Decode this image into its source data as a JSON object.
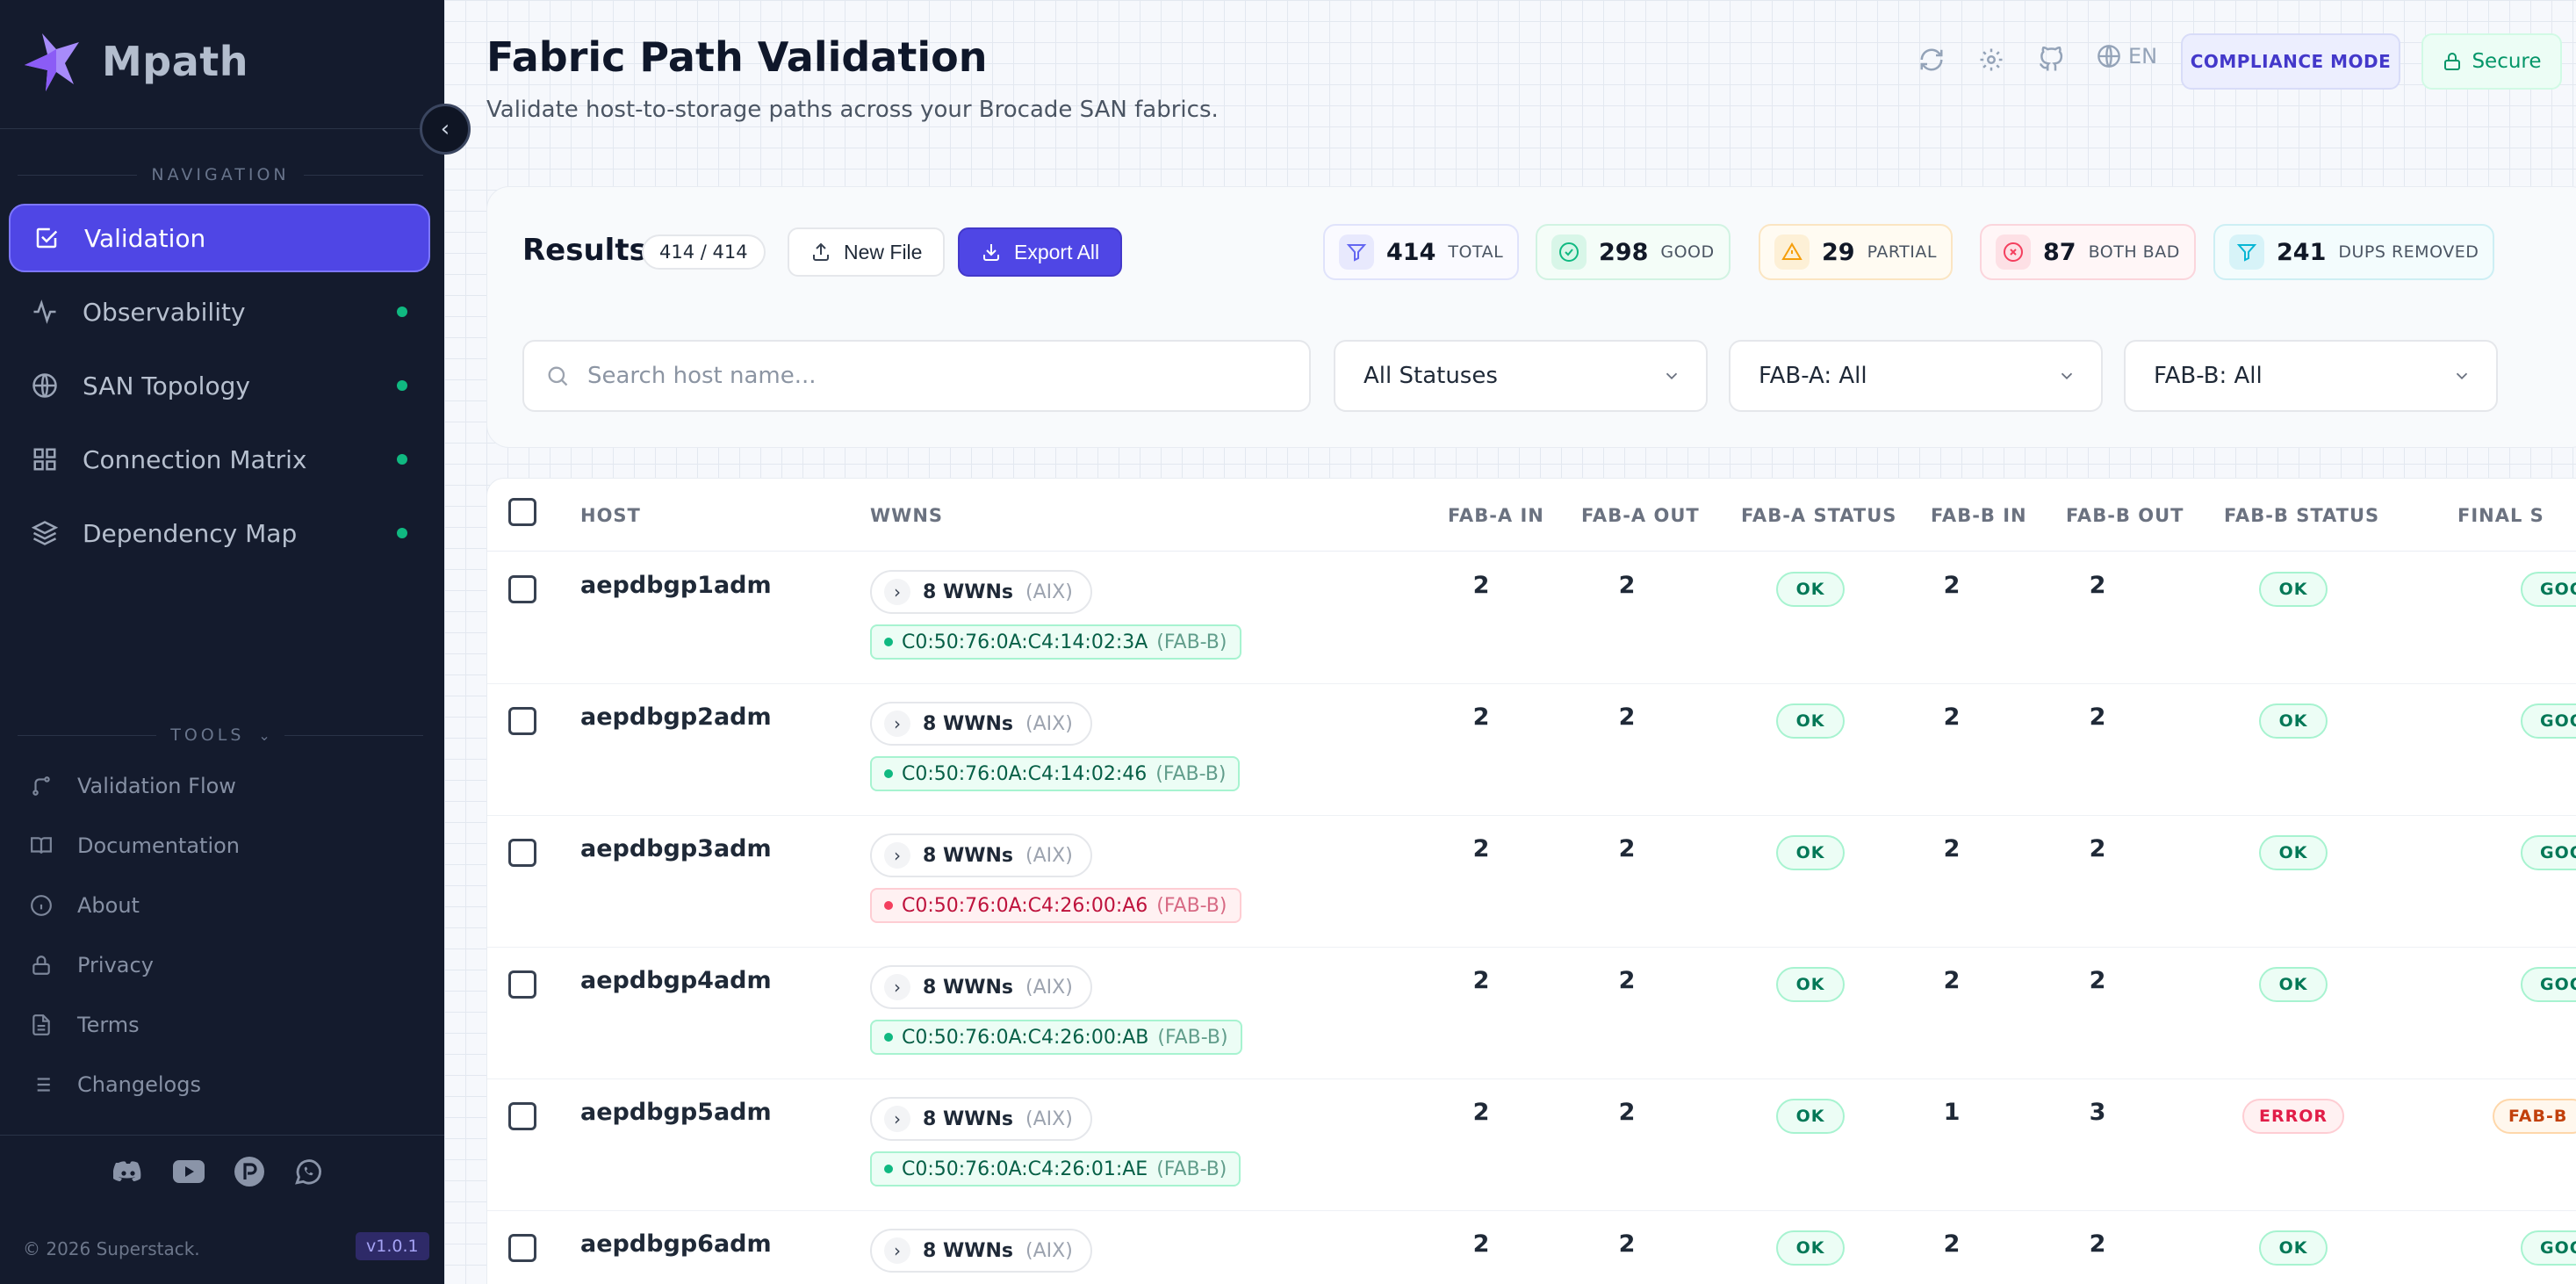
{
  "app": {
    "name": "Mpath",
    "version": "v1.0.1",
    "copyright": "© 2026 Superstack."
  },
  "sidebar": {
    "nav_label": "NAVIGATION",
    "tools_label": "TOOLS",
    "nav": [
      {
        "label": "Validation",
        "icon": "checkbox-icon",
        "active": true
      },
      {
        "label": "Observability",
        "icon": "pulse-icon"
      },
      {
        "label": "SAN Topology",
        "icon": "globe-icon"
      },
      {
        "label": "Connection Matrix",
        "icon": "grid-icon"
      },
      {
        "label": "Dependency Map",
        "icon": "layers-icon"
      }
    ],
    "tools": [
      {
        "label": "Validation Flow",
        "icon": "flow-icon"
      },
      {
        "label": "Documentation",
        "icon": "book-icon"
      },
      {
        "label": "About",
        "icon": "info-icon"
      },
      {
        "label": "Privacy",
        "icon": "lock-icon"
      },
      {
        "label": "Terms",
        "icon": "document-icon"
      },
      {
        "label": "Changelogs",
        "icon": "list-icon"
      }
    ],
    "social": [
      "discord-icon",
      "youtube-icon",
      "patreon-icon",
      "whatsapp-icon"
    ]
  },
  "header": {
    "title": "Fabric Path Validation",
    "subtitle": "Validate host-to-storage paths across your Brocade SAN fabrics.",
    "lang": "EN",
    "compliance": "COMPLIANCE MODE",
    "secure": "Secure"
  },
  "results": {
    "title": "Results",
    "count": "414 / 414",
    "new_file": "New File",
    "export_all": "Export All",
    "stats": [
      {
        "num": "414",
        "label": "TOTAL",
        "color": "#6366f1"
      },
      {
        "num": "298",
        "label": "GOOD",
        "color": "#10b981"
      },
      {
        "num": "29",
        "label": "PARTIAL",
        "color": "#f59e0b"
      },
      {
        "num": "87",
        "label": "BOTH BAD",
        "color": "#f43f5e"
      },
      {
        "num": "241",
        "label": "DUPS REMOVED",
        "color": "#06b6d4"
      }
    ],
    "search_placeholder": "Search host name...",
    "status_filter": "All Statuses",
    "faba_filter": "FAB-A: All",
    "fabb_filter": "FAB-B: All"
  },
  "table": {
    "headers": {
      "host": "HOST",
      "wwns": "WWNS",
      "faba_in": "FAB-A IN",
      "faba_out": "FAB-A OUT",
      "faba_status": "FAB-A STATUS",
      "fabb_in": "FAB-B IN",
      "fabb_out": "FAB-B OUT",
      "fabb_status": "FAB-B STATUS",
      "final": "FINAL S"
    },
    "rows": [
      {
        "host": "aepdbgp1adm",
        "wwns": "8 WWNs",
        "os": "(AIX)",
        "wwn": "C0:50:76:0A:C4:14:02:3A",
        "fab": "(FAB-B)",
        "wwn_state": "good",
        "a_in": "2",
        "a_out": "2",
        "a_status": "OK",
        "b_in": "2",
        "b_out": "2",
        "b_status": "OK",
        "final": "GOOD"
      },
      {
        "host": "aepdbgp2adm",
        "wwns": "8 WWNs",
        "os": "(AIX)",
        "wwn": "C0:50:76:0A:C4:14:02:46",
        "fab": "(FAB-B)",
        "wwn_state": "good",
        "a_in": "2",
        "a_out": "2",
        "a_status": "OK",
        "b_in": "2",
        "b_out": "2",
        "b_status": "OK",
        "final": "GOOD"
      },
      {
        "host": "aepdbgp3adm",
        "wwns": "8 WWNs",
        "os": "(AIX)",
        "wwn": "C0:50:76:0A:C4:26:00:A6",
        "fab": "(FAB-B)",
        "wwn_state": "bad",
        "a_in": "2",
        "a_out": "2",
        "a_status": "OK",
        "b_in": "2",
        "b_out": "2",
        "b_status": "OK",
        "final": "GOOD"
      },
      {
        "host": "aepdbgp4adm",
        "wwns": "8 WWNs",
        "os": "(AIX)",
        "wwn": "C0:50:76:0A:C4:26:00:AB",
        "fab": "(FAB-B)",
        "wwn_state": "good",
        "a_in": "2",
        "a_out": "2",
        "a_status": "OK",
        "b_in": "2",
        "b_out": "2",
        "b_status": "OK",
        "final": "GOOD"
      },
      {
        "host": "aepdbgp5adm",
        "wwns": "8 WWNs",
        "os": "(AIX)",
        "wwn": "C0:50:76:0A:C4:26:01:AE",
        "fab": "(FAB-B)",
        "wwn_state": "good",
        "a_in": "2",
        "a_out": "2",
        "a_status": "OK",
        "b_in": "1",
        "b_out": "3",
        "b_status": "ERROR",
        "final": "FAB-B"
      },
      {
        "host": "aepdbgp6adm",
        "wwns": "8 WWNs",
        "os": "(AIX)",
        "wwn": "",
        "fab": "",
        "wwn_state": "good",
        "a_in": "2",
        "a_out": "2",
        "a_status": "OK",
        "b_in": "2",
        "b_out": "2",
        "b_status": "OK",
        "final": "GOOD"
      }
    ]
  }
}
